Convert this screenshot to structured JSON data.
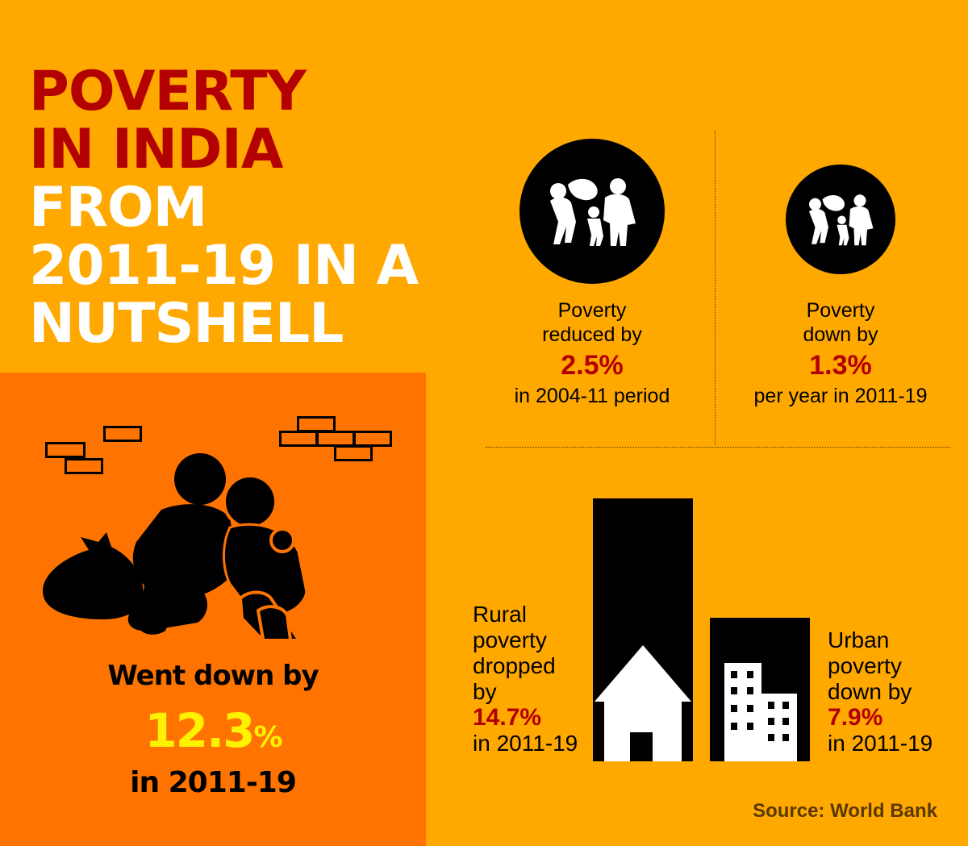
{
  "title": {
    "line1": "POVERTY",
    "line2": "IN INDIA",
    "line3": "FROM",
    "line4": "2011-19 IN A",
    "line5": "NUTSHELL"
  },
  "left_panel": {
    "went_down": "Went down by",
    "value": "12.3",
    "value_unit": "%",
    "period": "in 2011-19"
  },
  "stats": [
    {
      "line1": "Poverty",
      "line2": "reduced by",
      "value": "2.5%",
      "line3": "in 2004-11 period",
      "icon": "family-walking-icon"
    },
    {
      "line1": "Poverty",
      "line2": "down by",
      "value": "1.3%",
      "line3": "per year in 2011-19",
      "icon": "family-walking-icon"
    }
  ],
  "rural": {
    "l1": "Rural",
    "l2": "poverty",
    "l3": "dropped",
    "l4": "by",
    "value": "14.7%",
    "period": "in 2011-19",
    "icon": "hut-icon"
  },
  "urban": {
    "l1": "Urban",
    "l2": "poverty",
    "l3": "down by",
    "value": "7.9%",
    "period": "in 2011-19",
    "icon": "building-icon"
  },
  "source": "Source: World Bank",
  "colors": {
    "background": "#ffa800",
    "panel": "#ff7400",
    "accent_red": "#b30000",
    "highlight_yellow": "#fff200"
  }
}
